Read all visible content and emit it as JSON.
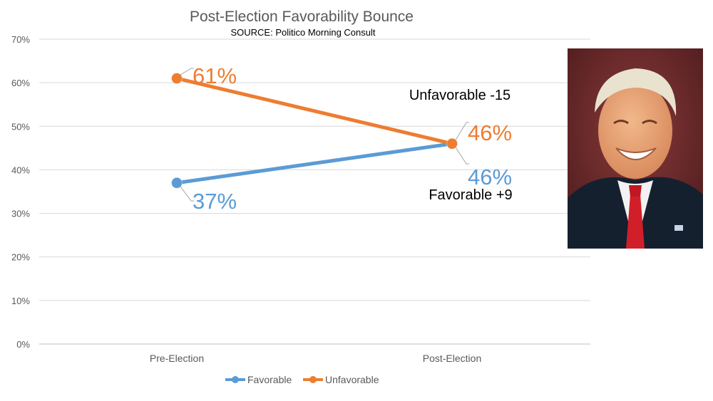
{
  "chart_data": {
    "type": "line",
    "title": "Post-Election Favorability Bounce",
    "subtitle": "SOURCE:  Politico Morning Consult",
    "categories": [
      "Pre-Election",
      "Post-Election"
    ],
    "yticks": [
      "0%",
      "10%",
      "20%",
      "30%",
      "40%",
      "50%",
      "60%",
      "70%"
    ],
    "ylim": [
      0,
      70
    ],
    "grid": true,
    "legend_position": "bottom",
    "series": [
      {
        "name": "Favorable",
        "values": [
          37,
          46
        ],
        "labels": [
          "37%",
          "46%"
        ],
        "color": "#5b9bd5"
      },
      {
        "name": "Unfavorable",
        "values": [
          61,
          46
        ],
        "labels": [
          "61%",
          "46%"
        ],
        "color": "#ed7d31"
      }
    ],
    "annotations": {
      "unfavorable_change": "Unfavorable -15",
      "favorable_change": "Favorable +9"
    }
  },
  "photo": {
    "icon": "portrait-photo",
    "colors": {
      "background": "#6a2a2c",
      "suit": "#15202e",
      "tie": "#d11f2a"
    }
  }
}
